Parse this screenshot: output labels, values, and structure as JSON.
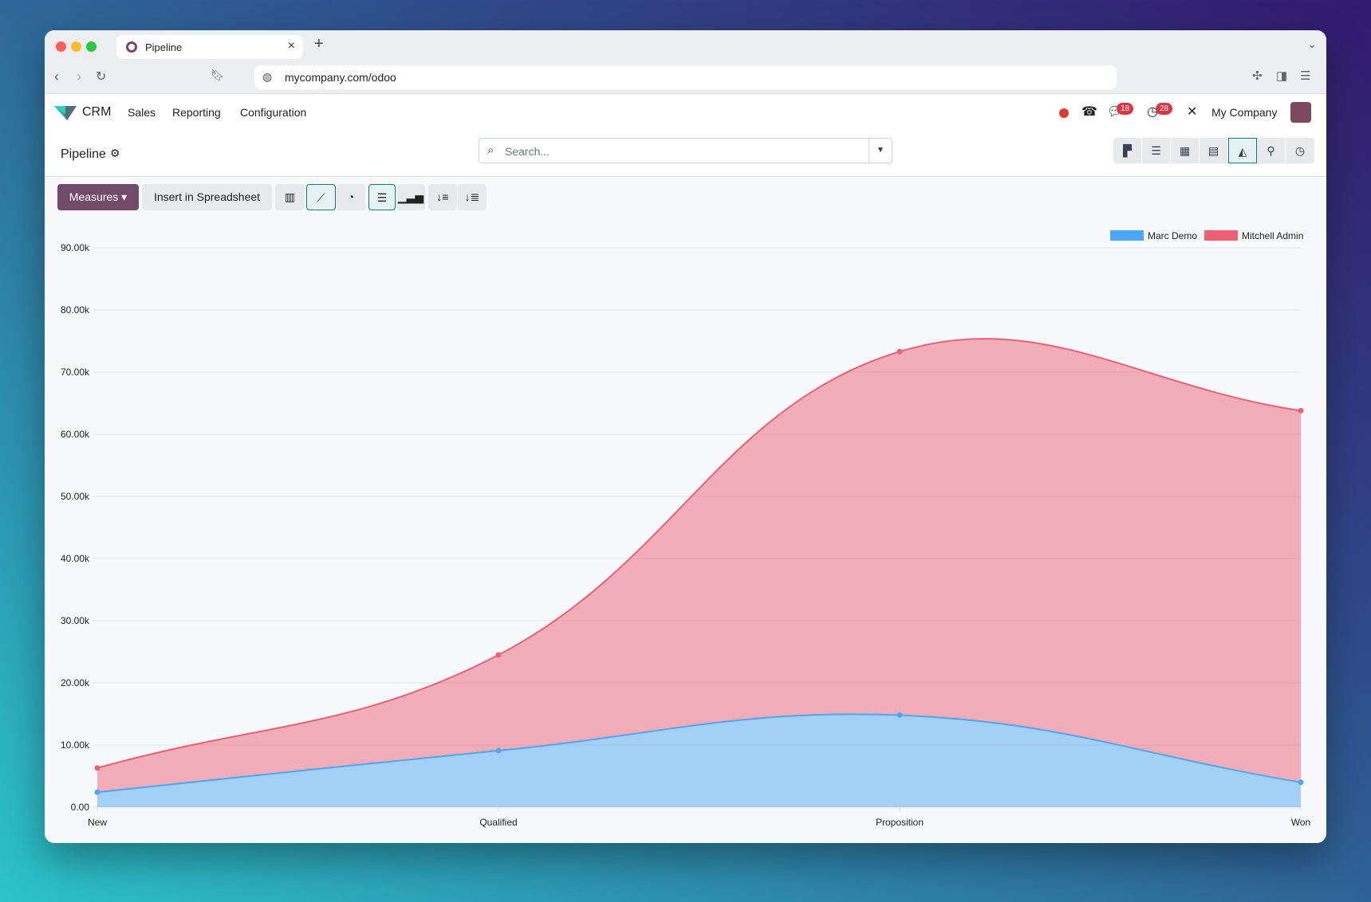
{
  "browser": {
    "tab_title": "Pipeline",
    "url": "mycompany.com/odoo"
  },
  "navbar": {
    "app": "CRM",
    "menus": [
      "Sales",
      "Reporting",
      "Configuration"
    ],
    "messages_count": "18",
    "activities_count": "28",
    "company": "My Company"
  },
  "control_panel": {
    "title": "Pipeline",
    "search_placeholder": "Search...",
    "views": [
      "kanban",
      "list",
      "calendar",
      "pivot",
      "graph",
      "map",
      "activity"
    ],
    "active_view": "graph"
  },
  "toolbar": {
    "measures_label": "Measures",
    "insert_label": "Insert in Spreadsheet",
    "active_chart": "line",
    "stacked": true
  },
  "colors": {
    "accent": "#714b67",
    "active": "#017e84",
    "marc": "#4ea7f2",
    "mitchell": "#ea6175"
  },
  "chart_data": {
    "type": "area",
    "stacked": true,
    "categories": [
      "New",
      "Qualified",
      "Proposition",
      "Won"
    ],
    "series": [
      {
        "name": "Marc Demo",
        "values": [
          2400,
          9100,
          14800,
          4000
        ],
        "color": "#4ea7f2"
      },
      {
        "name": "Mitchell Admin",
        "values": [
          3900,
          15400,
          58500,
          59800
        ],
        "color": "#ea6175"
      }
    ],
    "ylim": [
      0,
      90000
    ],
    "yticks": [
      "0.00",
      "10.00k",
      "20.00k",
      "30.00k",
      "40.00k",
      "50.00k",
      "60.00k",
      "70.00k",
      "80.00k",
      "90.00k"
    ],
    "grid": true,
    "legend": "top-right"
  }
}
